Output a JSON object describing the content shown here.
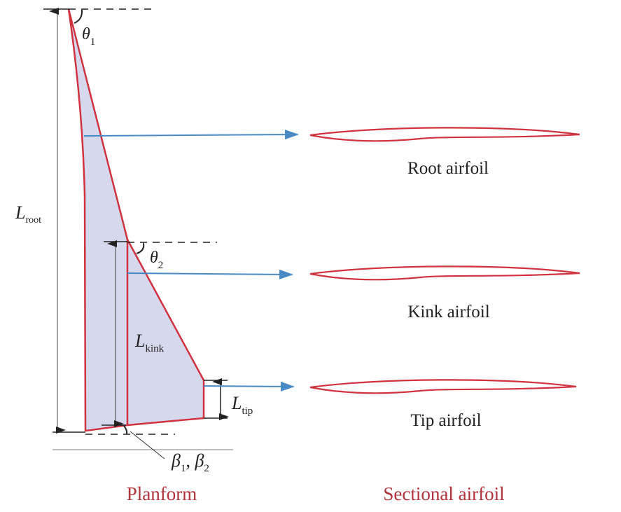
{
  "colors": {
    "outline": "#d0323f",
    "fill": "#d6d8ee",
    "arrow": "#4a8ac4",
    "caption": "#b0323a",
    "ink": "#222222"
  },
  "labels": {
    "theta1": {
      "sym": "θ",
      "sub": "1"
    },
    "theta2": {
      "sym": "θ",
      "sub": "2"
    },
    "l_root": {
      "sym": "L",
      "sub": "root"
    },
    "l_kink": {
      "sym": "L",
      "sub": "kink"
    },
    "l_tip": {
      "sym": "L",
      "sub": "tip"
    },
    "beta": {
      "b1": "β",
      "s1": "1",
      "sep": ", ",
      "b2": "β",
      "s2": "2"
    }
  },
  "airfoils": {
    "root": "Root airfoil",
    "kink": "Kink airfoil",
    "tip": "Tip airfoil"
  },
  "captions": {
    "planform": "Planform",
    "sectional": "Sectional airfoil"
  }
}
